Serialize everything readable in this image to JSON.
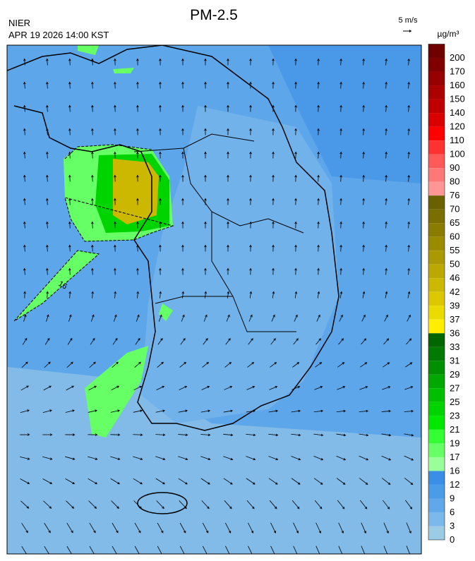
{
  "header": {
    "title": "PM-2.5",
    "agency": "NIER",
    "timestamp": "APR 19 2026 14:00 KST"
  },
  "wind_scale": {
    "label": "5 m/s"
  },
  "colorbar": {
    "unit": "µg/m³",
    "levels": [
      {
        "label": "200",
        "color": "#6e0000"
      },
      {
        "label": "170",
        "color": "#800000"
      },
      {
        "label": "160",
        "color": "#960000"
      },
      {
        "label": "150",
        "color": "#aa0000"
      },
      {
        "label": "140",
        "color": "#c00000"
      },
      {
        "label": "120",
        "color": "#d80000"
      },
      {
        "label": "110",
        "color": "#ff0000"
      },
      {
        "label": "100",
        "color": "#ff3232"
      },
      {
        "label": "90",
        "color": "#ff5a5a"
      },
      {
        "label": "80",
        "color": "#ff7878"
      },
      {
        "label": "76",
        "color": "#ff9696"
      },
      {
        "label": "70",
        "color": "#6b6000"
      },
      {
        "label": "65",
        "color": "#7a6e00"
      },
      {
        "label": "60",
        "color": "#8a7c00"
      },
      {
        "label": "55",
        "color": "#9a8a00"
      },
      {
        "label": "50",
        "color": "#aa9900"
      },
      {
        "label": "46",
        "color": "#bba800"
      },
      {
        "label": "42",
        "color": "#ccb800"
      },
      {
        "label": "39",
        "color": "#ddc800"
      },
      {
        "label": "37",
        "color": "#eadb00"
      },
      {
        "label": "36",
        "color": "#ffee00"
      },
      {
        "label": "33",
        "color": "#006600"
      },
      {
        "label": "31",
        "color": "#007a00"
      },
      {
        "label": "29",
        "color": "#008f00"
      },
      {
        "label": "27",
        "color": "#00a800"
      },
      {
        "label": "25",
        "color": "#00bf00"
      },
      {
        "label": "23",
        "color": "#00d400"
      },
      {
        "label": "21",
        "color": "#00e800"
      },
      {
        "label": "19",
        "color": "#33ff33"
      },
      {
        "label": "17",
        "color": "#66ff66"
      },
      {
        "label": "16",
        "color": "#99ff99"
      },
      {
        "label": "12",
        "color": "#3a8ee6"
      },
      {
        "label": "9",
        "color": "#4a9be8"
      },
      {
        "label": "6",
        "color": "#60a8ea"
      },
      {
        "label": "3",
        "color": "#7cb8ea"
      },
      {
        "label": "0",
        "color": "#9ccbe6"
      }
    ]
  },
  "map": {
    "contour_label": "16"
  }
}
